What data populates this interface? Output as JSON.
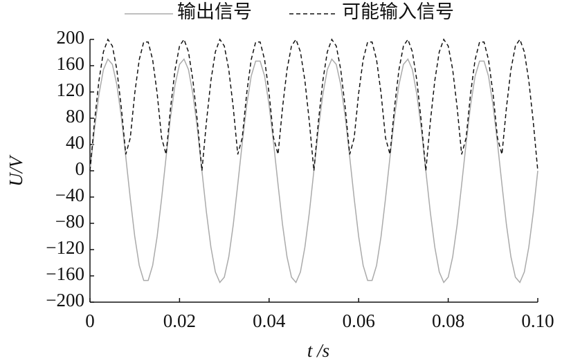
{
  "chart_data": {
    "type": "line",
    "x_label": "t /s",
    "y_label": "U/V",
    "x": [
      0,
      0.001,
      0.002,
      0.003,
      0.004,
      0.005,
      0.006,
      0.007,
      0.008,
      0.009,
      0.01,
      0.011,
      0.012,
      0.013,
      0.014,
      0.015,
      0.016,
      0.017,
      0.018,
      0.019,
      0.02,
      0.021,
      0.022,
      0.023,
      0.024,
      0.025,
      0.026,
      0.027,
      0.028,
      0.029,
      0.03,
      0.031,
      0.032,
      0.033,
      0.034,
      0.035,
      0.036,
      0.037,
      0.038,
      0.039,
      0.04,
      0.041,
      0.042,
      0.043,
      0.044,
      0.045,
      0.046,
      0.047,
      0.048,
      0.049,
      0.05,
      0.051,
      0.052,
      0.053,
      0.054,
      0.055,
      0.056,
      0.057,
      0.058,
      0.059,
      0.06,
      0.061,
      0.062,
      0.063,
      0.064,
      0.065,
      0.066,
      0.067,
      0.068,
      0.069,
      0.07,
      0.071,
      0.072,
      0.073,
      0.074,
      0.075,
      0.076,
      0.077,
      0.078,
      0.079,
      0.08,
      0.081,
      0.082,
      0.083,
      0.084,
      0.085,
      0.086,
      0.087,
      0.088,
      0.089,
      0.09,
      0.091,
      0.092,
      0.093,
      0.094,
      0.095,
      0.096,
      0.097,
      0.098,
      0.099,
      0.1
    ],
    "series": [
      {
        "name": "输出信号",
        "color": "#aaaaaa",
        "dashed": false,
        "values": [
          0,
          63,
          116,
          154,
          170,
          162,
          131,
          82,
          21,
          -42,
          -100,
          -144,
          -167,
          -167,
          -144,
          -100,
          -42,
          21,
          82,
          131,
          162,
          170,
          154,
          116,
          63,
          0,
          -63,
          -116,
          -154,
          -170,
          -162,
          -131,
          -82,
          -21,
          42,
          100,
          144,
          167,
          167,
          144,
          100,
          42,
          -21,
          -82,
          -131,
          -162,
          -170,
          -154,
          -116,
          -63,
          0,
          63,
          116,
          154,
          170,
          162,
          131,
          82,
          21,
          -42,
          -100,
          -144,
          -167,
          -167,
          -144,
          -100,
          -42,
          21,
          82,
          131,
          162,
          170,
          154,
          116,
          63,
          0,
          -63,
          -116,
          -154,
          -170,
          -162,
          -131,
          -82,
          -21,
          42,
          100,
          144,
          167,
          167,
          144,
          100,
          42,
          -21,
          -82,
          -131,
          -162,
          -170,
          -154,
          -116,
          -63,
          0
        ]
      },
      {
        "name": "可能输入信号",
        "color": "#111111",
        "dashed": true,
        "values": [
          0,
          74,
          137,
          181,
          200,
          190,
          154,
          96,
          25,
          50,
          118,
          169,
          196,
          196,
          169,
          118,
          50,
          25,
          96,
          154,
          190,
          200,
          181,
          137,
          74,
          0,
          74,
          137,
          181,
          200,
          190,
          154,
          96,
          25,
          50,
          118,
          169,
          196,
          196,
          169,
          118,
          50,
          25,
          96,
          154,
          190,
          200,
          181,
          137,
          74,
          0,
          74,
          137,
          181,
          200,
          190,
          154,
          96,
          25,
          50,
          118,
          169,
          196,
          196,
          169,
          118,
          50,
          25,
          96,
          154,
          190,
          200,
          181,
          137,
          74,
          0,
          74,
          137,
          181,
          200,
          190,
          154,
          96,
          25,
          50,
          118,
          169,
          196,
          196,
          169,
          118,
          50,
          25,
          96,
          154,
          190,
          200,
          181,
          137,
          74,
          0
        ]
      }
    ],
    "xlim": [
      0,
      0.1
    ],
    "xticks": [
      0,
      0.02,
      0.04,
      0.06,
      0.08,
      {
        "value": 0.1,
        "label": "0.10"
      }
    ],
    "ylim": [
      -200,
      200
    ],
    "yticks": [
      {
        "value": -200,
        "label": "−200"
      },
      {
        "value": -160,
        "label": "−160"
      },
      {
        "value": -120,
        "label": "−120"
      },
      {
        "value": -80,
        "label": "−80"
      },
      {
        "value": -40,
        "label": "−40"
      },
      0,
      40,
      80,
      120,
      160,
      200
    ],
    "legend": "top"
  }
}
